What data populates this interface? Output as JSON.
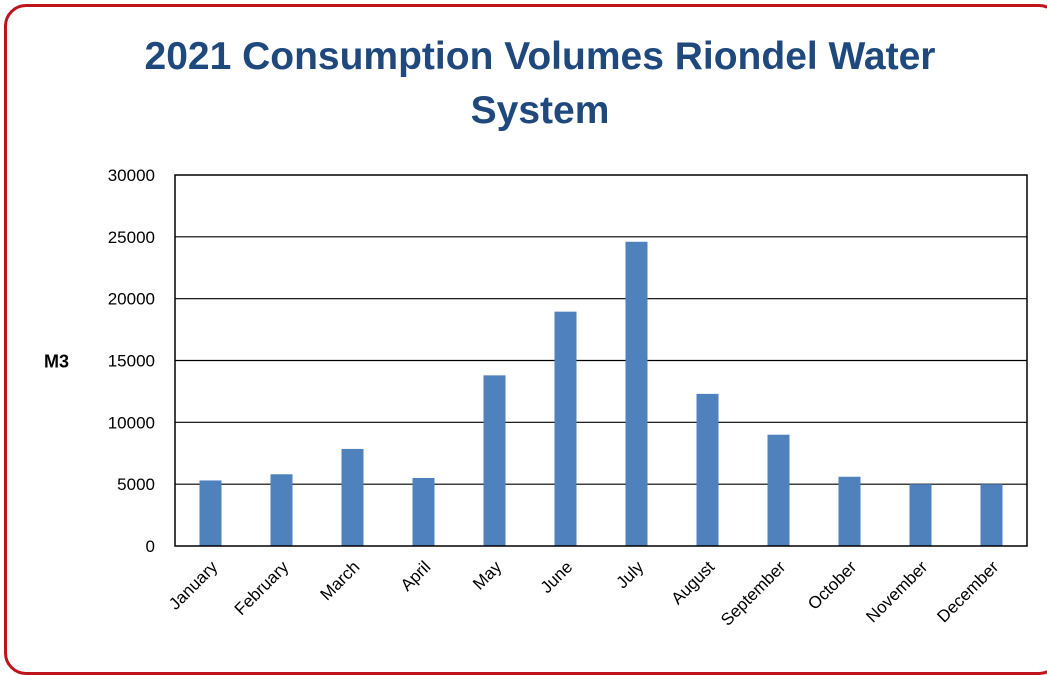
{
  "chart_data": {
    "type": "bar",
    "title": "2021 Consumption Volumes Riondel Water System",
    "xlabel": "",
    "ylabel": "M3",
    "categories": [
      "January",
      "February",
      "March",
      "April",
      "May",
      "June",
      "July",
      "August",
      "September",
      "October",
      "November",
      "December"
    ],
    "values": [
      5300,
      5800,
      7850,
      5500,
      13800,
      18950,
      24600,
      12300,
      9000,
      5600,
      5000,
      5000
    ],
    "ylim": [
      0,
      30000
    ],
    "yticks": [
      0,
      5000,
      10000,
      15000,
      20000,
      25000,
      30000
    ],
    "grid": true,
    "bar_color": "#4f81bd",
    "frame_color": "#c0141c",
    "title_color": "#1f497d"
  }
}
